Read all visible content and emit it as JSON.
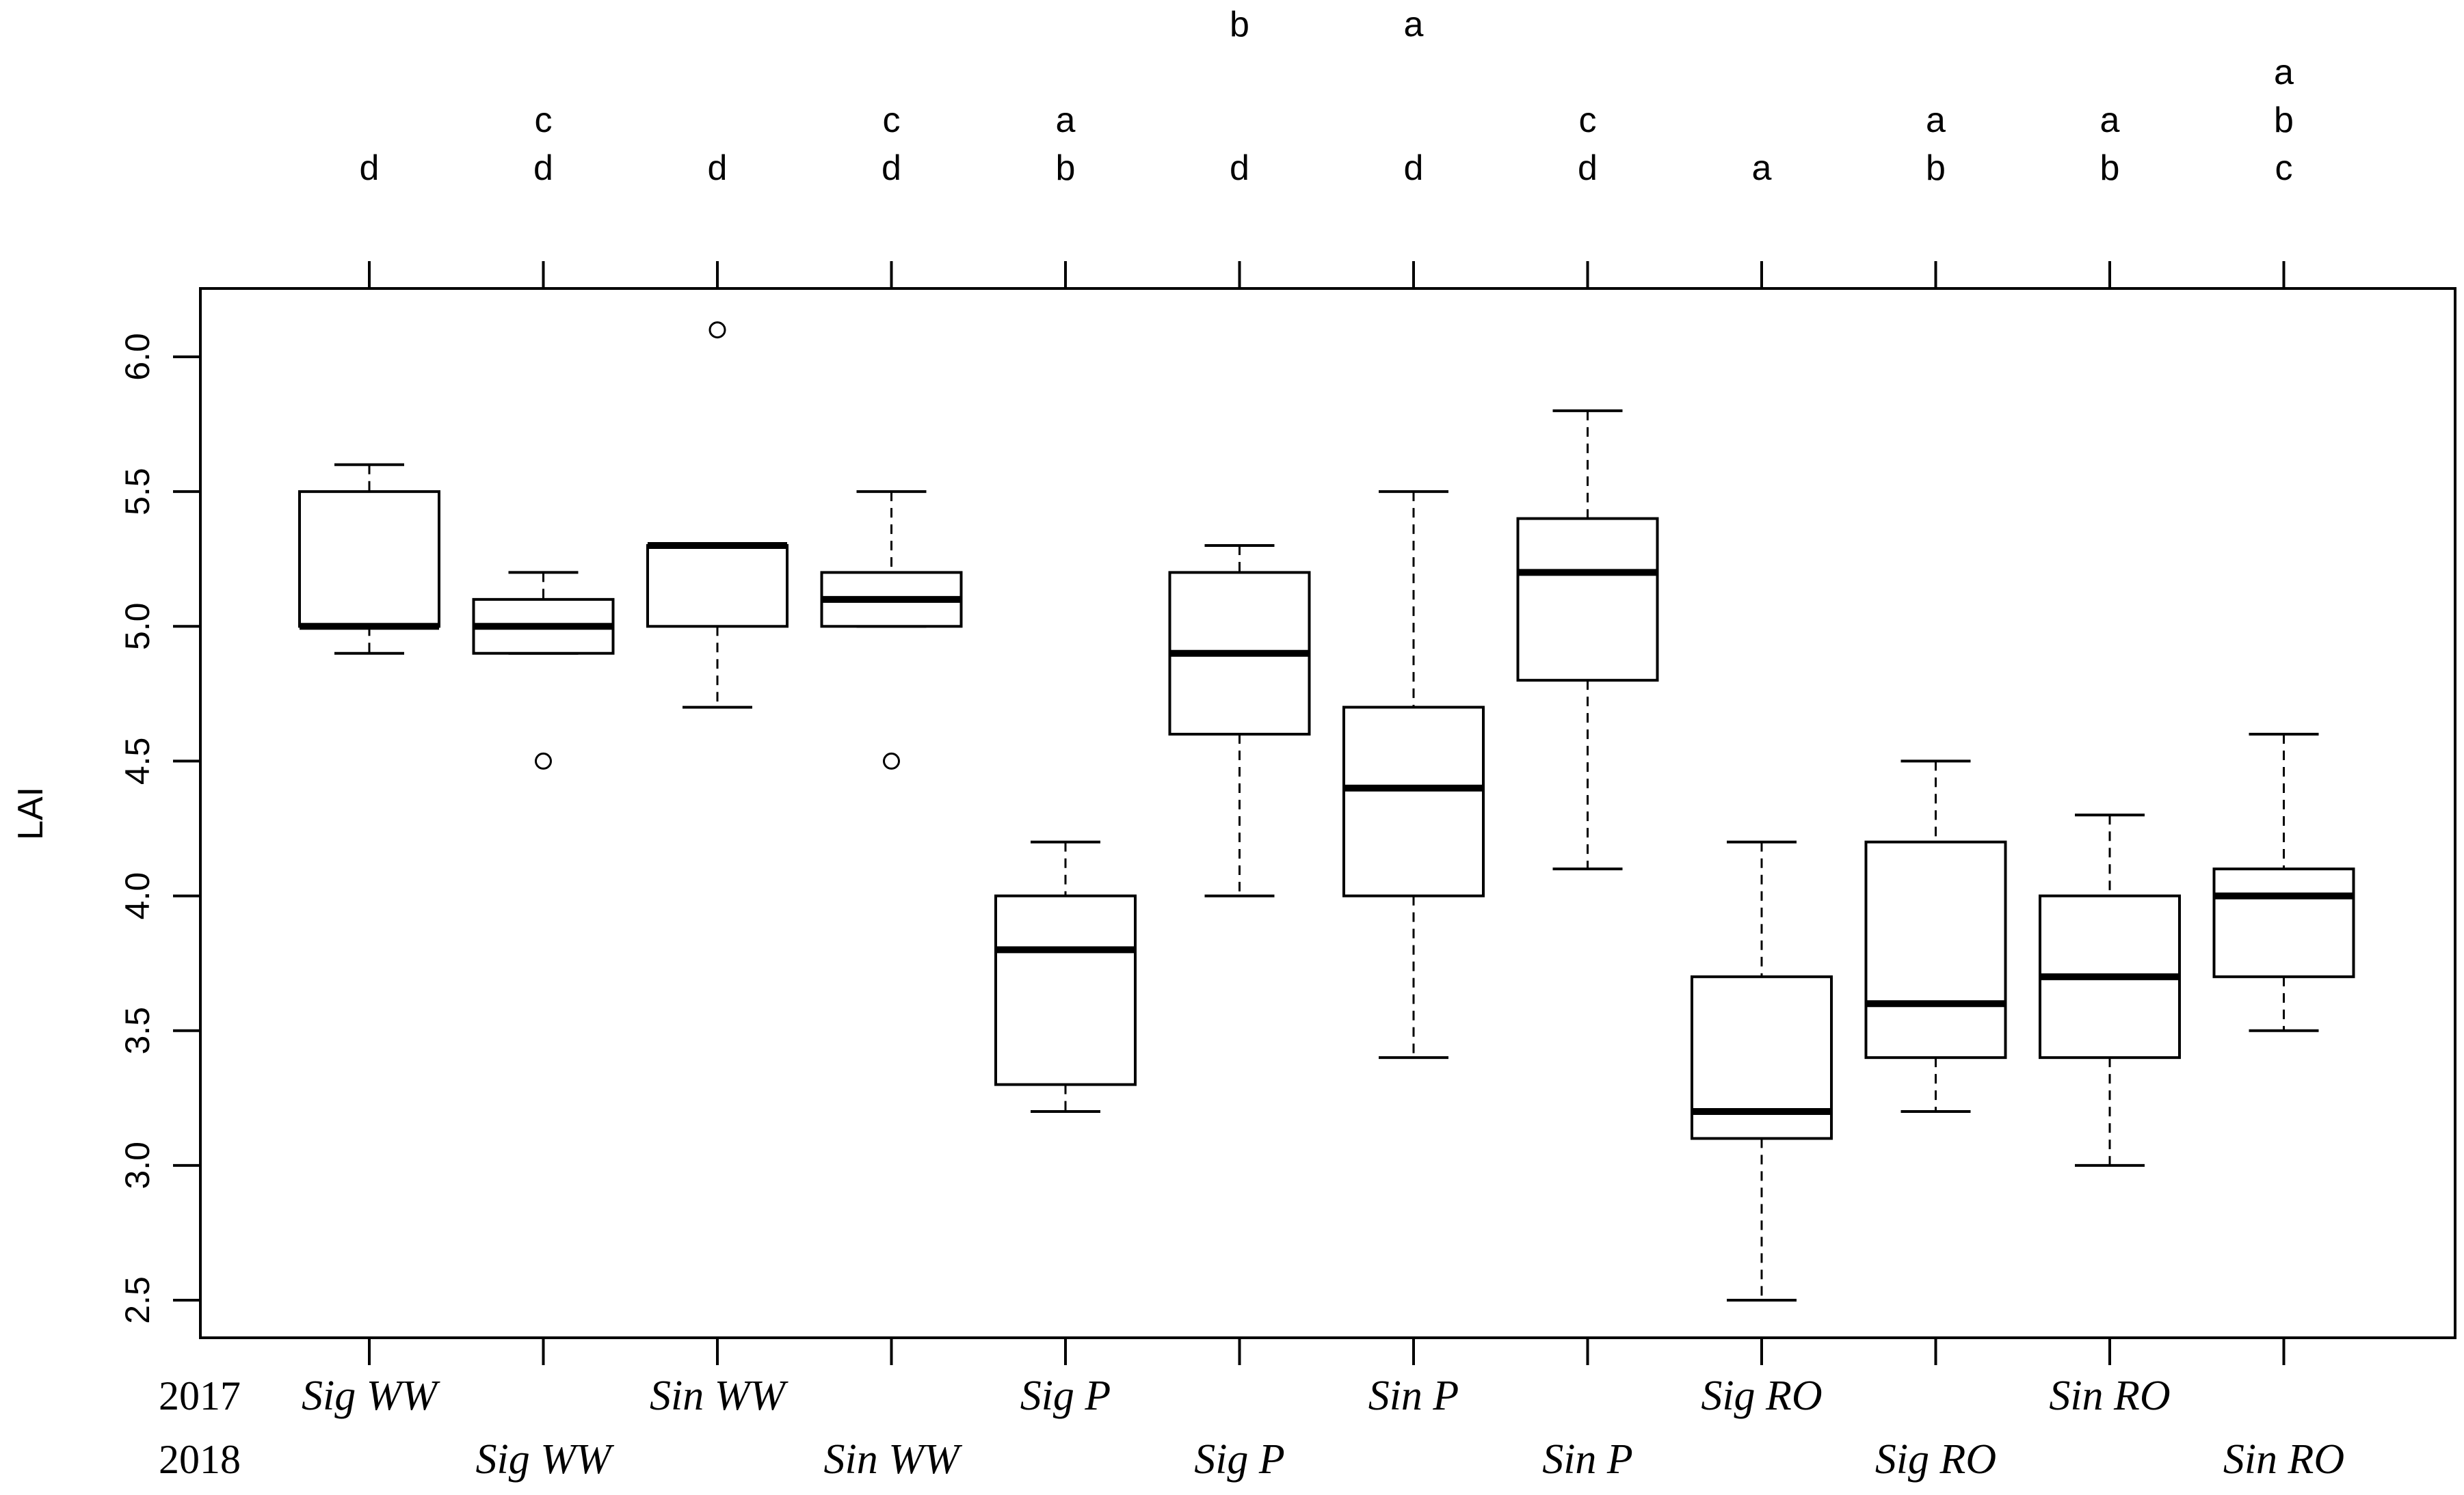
{
  "chart_data": {
    "type": "boxplot",
    "title": "",
    "xlabel": "",
    "ylabel": "LAI",
    "ylim": [
      2.4,
      6.3
    ],
    "yticks": [
      "2.5",
      "3.0",
      "3.5",
      "4.0",
      "4.5",
      "5.0",
      "5.5",
      "6.0"
    ],
    "row_labels": [
      "2017",
      "2018"
    ],
    "groups": [
      {
        "label": "Sig WW",
        "year": "2017",
        "whisker_low": 4.9,
        "q1": 5.0,
        "median": 5.0,
        "q3": 5.5,
        "whisker_high": 5.6,
        "outliers": [],
        "letters": [
          "d"
        ]
      },
      {
        "label": "Sig WW",
        "year": "2018",
        "whisker_low": 4.9,
        "q1": 4.9,
        "median": 5.0,
        "q3": 5.1,
        "whisker_high": 5.2,
        "outliers": [
          4.5
        ],
        "letters": [
          "c",
          "d"
        ]
      },
      {
        "label": "Sin WW",
        "year": "2017",
        "whisker_low": 4.7,
        "q1": 5.0,
        "median": 5.3,
        "q3": 5.3,
        "whisker_high": 5.3,
        "outliers": [
          6.1
        ],
        "letters": [
          "d"
        ]
      },
      {
        "label": "Sin WW",
        "year": "2018",
        "whisker_low": 5.0,
        "q1": 5.0,
        "median": 5.1,
        "q3": 5.2,
        "whisker_high": 5.5,
        "outliers": [
          4.5
        ],
        "letters": [
          "c",
          "d"
        ]
      },
      {
        "label": "Sig P",
        "year": "2017",
        "whisker_low": 3.2,
        "q1": 3.3,
        "median": 3.8,
        "q3": 4.0,
        "whisker_high": 4.2,
        "outliers": [],
        "letters": [
          "a",
          "b"
        ]
      },
      {
        "label": "Sig P",
        "year": "2018",
        "whisker_low": 4.0,
        "q1": 4.6,
        "median": 4.9,
        "q3": 5.2,
        "whisker_high": 5.3,
        "outliers": [],
        "letters": [
          "b",
          "",
          "",
          "d"
        ]
      },
      {
        "label": "Sin P",
        "year": "2017",
        "whisker_low": 3.4,
        "q1": 4.0,
        "median": 4.4,
        "q3": 4.7,
        "whisker_high": 5.5,
        "outliers": [],
        "letters": [
          "a",
          "",
          "",
          "d"
        ]
      },
      {
        "label": "Sin P",
        "year": "2018",
        "whisker_low": 4.1,
        "q1": 4.8,
        "median": 5.2,
        "q3": 5.4,
        "whisker_high": 5.8,
        "outliers": [],
        "letters": [
          "c",
          "d"
        ]
      },
      {
        "label": "Sig RO",
        "year": "2017",
        "whisker_low": 2.5,
        "q1": 3.1,
        "median": 3.2,
        "q3": 3.7,
        "whisker_high": 4.2,
        "outliers": [],
        "letters": [
          "a"
        ]
      },
      {
        "label": "Sig RO",
        "year": "2018",
        "whisker_low": 3.2,
        "q1": 3.4,
        "median": 3.6,
        "q3": 4.2,
        "whisker_high": 4.5,
        "outliers": [],
        "letters": [
          "a",
          "b"
        ]
      },
      {
        "label": "Sin RO",
        "year": "2017",
        "whisker_low": 3.0,
        "q1": 3.4,
        "median": 3.7,
        "q3": 4.0,
        "whisker_high": 4.3,
        "outliers": [],
        "letters": [
          "a",
          "b"
        ]
      },
      {
        "label": "Sin RO",
        "year": "2018",
        "whisker_low": 3.5,
        "q1": 3.7,
        "median": 4.0,
        "q3": 4.1,
        "whisker_high": 4.6,
        "outliers": [],
        "letters": [
          "a",
          "b",
          "c"
        ]
      }
    ]
  }
}
